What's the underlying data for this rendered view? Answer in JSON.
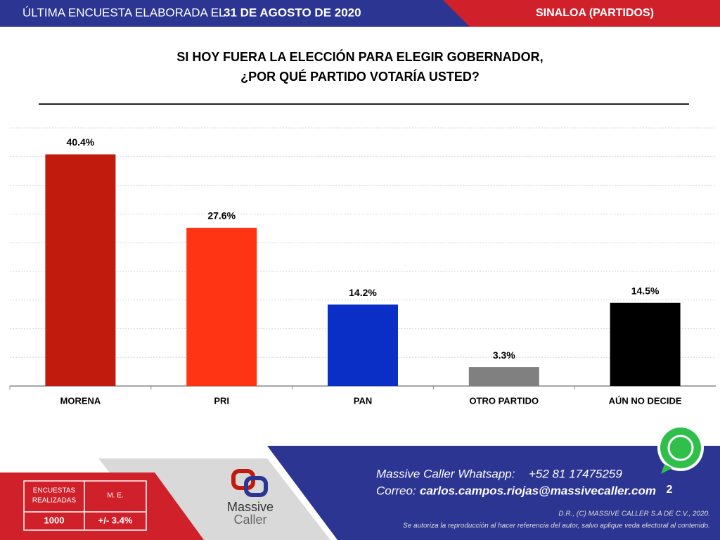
{
  "header": {
    "prefix": "ÚLTIMA ENCUESTA ELABORADA EL",
    "date": "31 DE AGOSTO DE 2020",
    "region": "SINALOA (PARTIDOS)"
  },
  "chart_data": {
    "type": "bar",
    "title": [
      "SI HOY FUERA LA ELECCIÓN PARA ELEGIR GOBERNADOR,",
      "¿POR QUÉ PARTIDO VOTARÍA USTED?"
    ],
    "categories": [
      "MORENA",
      "PRI",
      "PAN",
      "OTRO PARTIDO",
      "AÚN NO DECIDE"
    ],
    "values": [
      40.4,
      27.6,
      14.2,
      3.3,
      14.5
    ],
    "value_labels": [
      "40.4%",
      "27.6%",
      "14.2%",
      "3.3%",
      "14.5%"
    ],
    "colors": [
      "#c01b0c",
      "#ff3414",
      "#0a2fc6",
      "#808080",
      "#000000"
    ],
    "ylim": [
      0,
      45
    ],
    "yticks": [
      0,
      5,
      10,
      15,
      20,
      25,
      30,
      35,
      40,
      45
    ],
    "grid": true
  },
  "footer": {
    "table": {
      "col1_header": [
        "ENCUESTAS",
        "REALIZADAS"
      ],
      "col2_header": "M. E.",
      "col1_value": "1000",
      "col2_value": "+/- 3.4%"
    },
    "logo": [
      "Massive",
      "Caller"
    ],
    "whatsapp_label": "Massive Caller Whatsapp:",
    "whatsapp": "+52 81 17475259",
    "email_label": "Correo:",
    "email": "carlos.campos.riojas@massivecaller.com",
    "page": "2",
    "copyright": "D.R., (C) MASSIVE CALLER S.A DE C.V., 2020.",
    "disclaimer": "Se autoriza la reproducción al hacer referencia del autor, salvo aplique veda electoral al contenido."
  }
}
